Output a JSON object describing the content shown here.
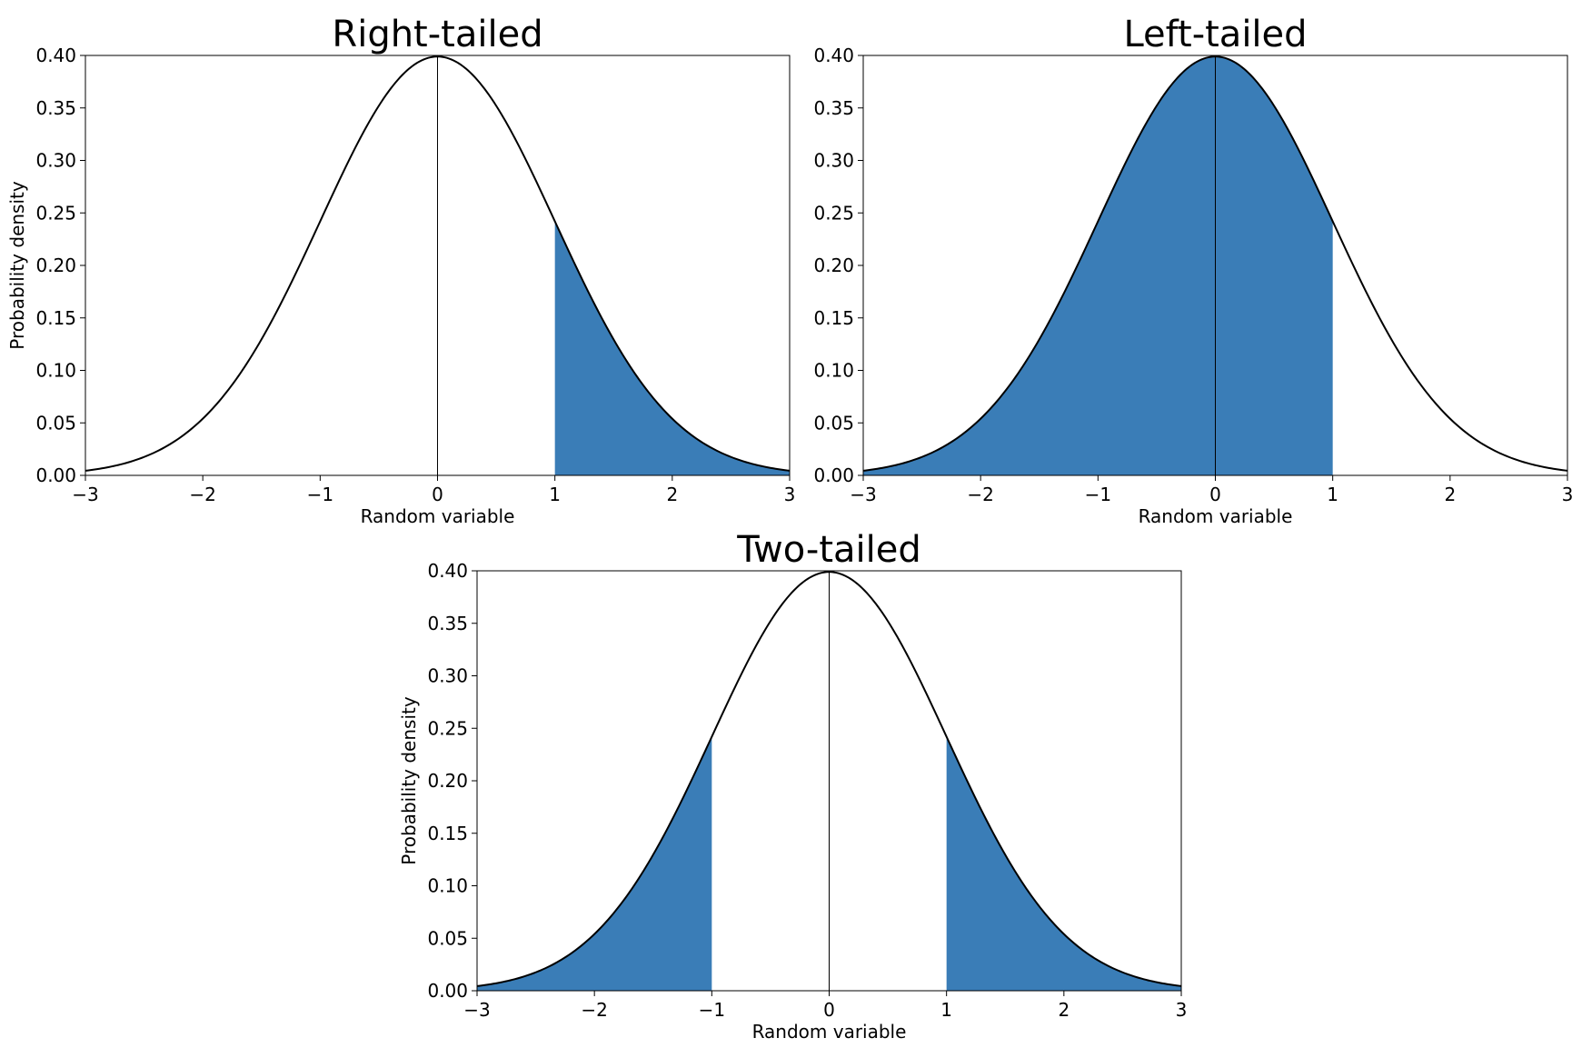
{
  "colors": {
    "fill": "#3a7db7",
    "curve": "#000000",
    "axes": "#000000",
    "background": "#ffffff"
  },
  "chart_data": [
    {
      "type": "area",
      "title": "Right-tailed",
      "xlabel": "Random variable",
      "ylabel": "Probability density",
      "xlim": [
        -3,
        3
      ],
      "ylim": [
        0,
        0.4
      ],
      "xticks": [
        "−3",
        "−2",
        "−1",
        "0",
        "1",
        "2",
        "3"
      ],
      "yticks": [
        "0.00",
        "0.05",
        "0.10",
        "0.15",
        "0.20",
        "0.25",
        "0.30",
        "0.35",
        "0.40"
      ],
      "curve": "standard normal density",
      "shaded_regions": [
        [
          1,
          3
        ]
      ],
      "vertical_line_x": 0,
      "grid": false
    },
    {
      "type": "area",
      "title": "Left-tailed",
      "xlabel": "Random variable",
      "ylabel": "",
      "xlim": [
        -3,
        3
      ],
      "ylim": [
        0,
        0.4
      ],
      "xticks": [
        "−3",
        "−2",
        "−1",
        "0",
        "1",
        "2",
        "3"
      ],
      "yticks": [
        "0.00",
        "0.05",
        "0.10",
        "0.15",
        "0.20",
        "0.25",
        "0.30",
        "0.35",
        "0.40"
      ],
      "curve": "standard normal density",
      "shaded_regions": [
        [
          -3,
          1
        ]
      ],
      "vertical_line_x": 0,
      "grid": false
    },
    {
      "type": "area",
      "title": "Two-tailed",
      "xlabel": "Random variable",
      "ylabel": "Probability density",
      "xlim": [
        -3,
        3
      ],
      "ylim": [
        0,
        0.4
      ],
      "xticks": [
        "−3",
        "−2",
        "−1",
        "0",
        "1",
        "2",
        "3"
      ],
      "yticks": [
        "0.00",
        "0.05",
        "0.10",
        "0.15",
        "0.20",
        "0.25",
        "0.30",
        "0.35",
        "0.40"
      ],
      "curve": "standard normal density",
      "shaded_regions": [
        [
          -3,
          -1
        ],
        [
          1,
          3
        ]
      ],
      "vertical_line_x": 0,
      "grid": false
    }
  ]
}
